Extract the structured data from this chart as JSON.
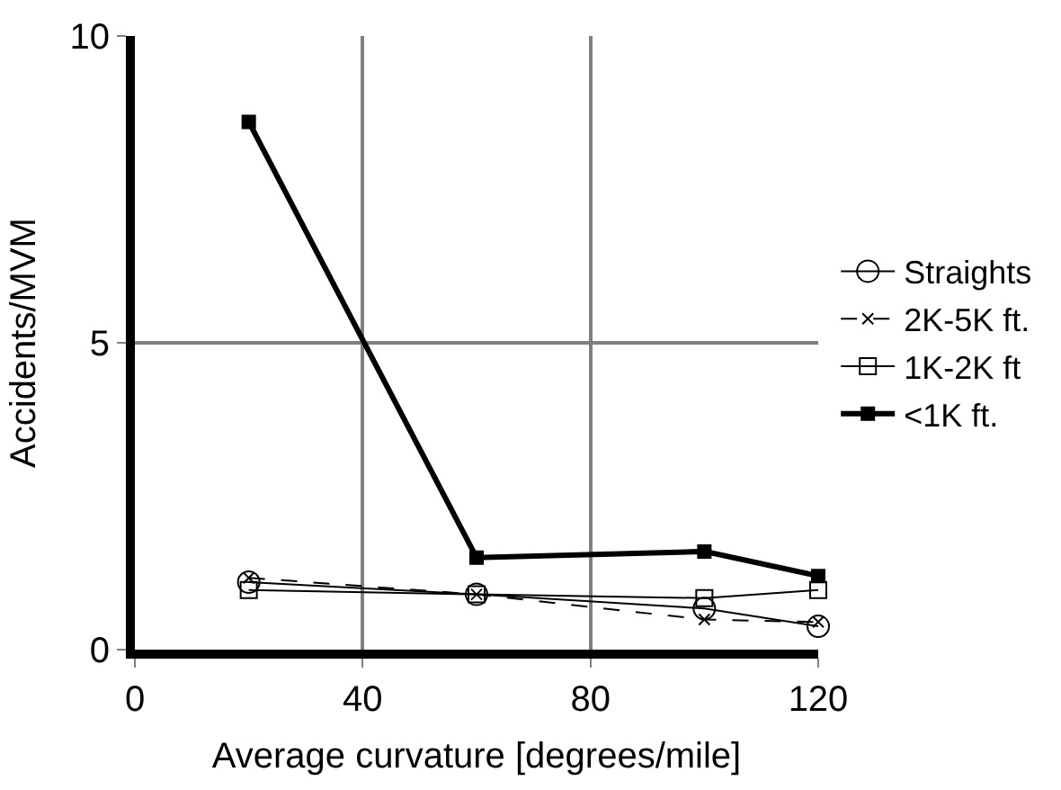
{
  "chart_data": {
    "type": "line",
    "xlabel": "Average curvature [degrees/mile]",
    "ylabel": "Accidents/MVM",
    "x": [
      20,
      60,
      100,
      120
    ],
    "series": [
      {
        "name": "Straights",
        "color": "#000000",
        "marker": "circle",
        "line_style": "solid",
        "values": [
          1.1,
          0.9,
          0.67,
          0.38
        ]
      },
      {
        "name": "2K-5K ft.",
        "color": "#000000",
        "marker": "cross",
        "line_style": "dashed",
        "values": [
          1.17,
          0.9,
          0.49,
          0.45
        ]
      },
      {
        "name": "1K-2K ft",
        "color": "#000000",
        "marker": "square",
        "line_style": "solid",
        "values": [
          0.97,
          0.9,
          0.84,
          0.97
        ]
      },
      {
        "name": "<1K ft.",
        "color": "#000000",
        "marker": "square",
        "line_style": "solid",
        "values": [
          8.6,
          1.5,
          1.6,
          1.2
        ]
      }
    ],
    "xlim": [
      0,
      120
    ],
    "xticks": [
      0,
      40,
      80,
      120
    ],
    "ylim": [
      0,
      10
    ],
    "yticks": [
      0,
      5,
      10
    ],
    "grid": true,
    "legend": "right"
  }
}
